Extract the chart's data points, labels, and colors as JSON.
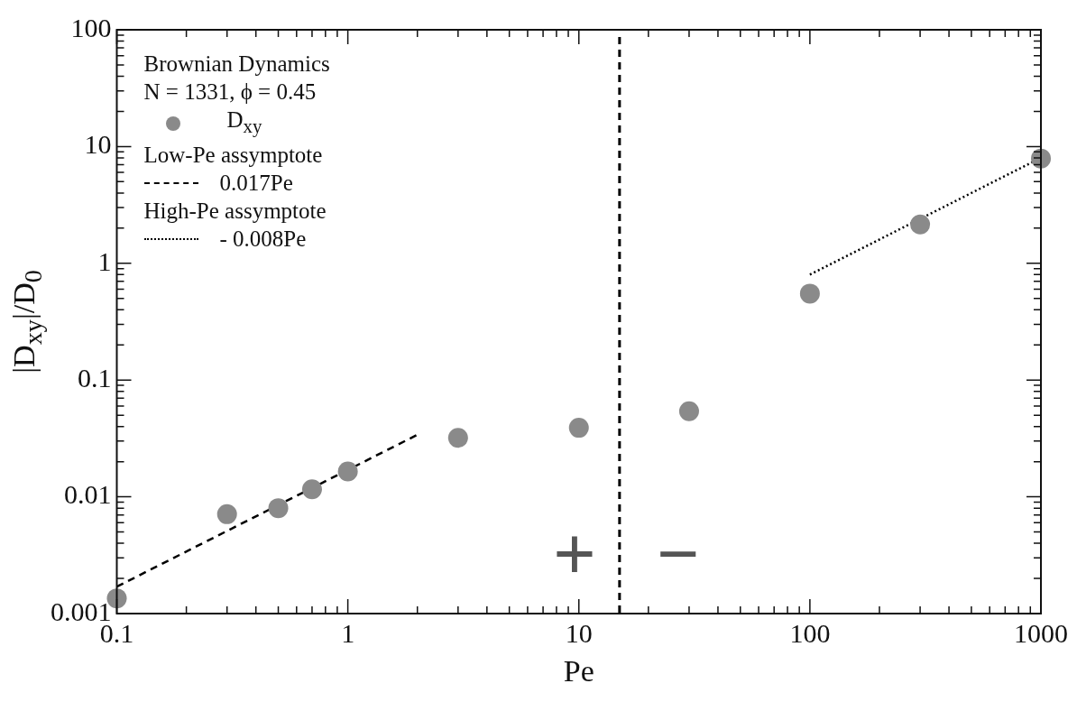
{
  "chart_data": {
    "type": "scatter",
    "xlabel": "Pe",
    "ylabel": "|D$_{xy}$|/D$_{0}$",
    "legend_title": "Brownian Dynamics",
    "legend": "top left",
    "log": "xy",
    "grid": false,
    "xlim": [
      0.1,
      1000
    ],
    "ylim": [
      0.001,
      100
    ],
    "xticks": [
      0.1,
      {
        "value": 0.2,
        "label": null
      },
      {
        "value": 0.3,
        "label": null
      },
      {
        "value": 0.4,
        "label": null
      },
      {
        "value": 0.5,
        "label": null
      },
      {
        "value": 0.6,
        "label": null
      },
      {
        "value": 0.7,
        "label": null
      },
      {
        "value": 0.8,
        "label": null
      },
      {
        "value": 0.9,
        "label": null
      },
      1,
      {
        "value": 2,
        "label": null
      },
      {
        "value": 3,
        "label": null
      },
      {
        "value": 4,
        "label": null
      },
      {
        "value": 5,
        "label": null
      },
      {
        "value": 6,
        "label": null
      },
      {
        "value": 7,
        "label": null
      },
      {
        "value": 8,
        "label": null
      },
      {
        "value": 9,
        "label": null
      },
      10,
      {
        "value": 20,
        "label": null
      },
      {
        "value": 30,
        "label": null
      },
      {
        "value": 40,
        "label": null
      },
      {
        "value": 50,
        "label": null
      },
      {
        "value": 60,
        "label": null
      },
      {
        "value": 70,
        "label": null
      },
      {
        "value": 80,
        "label": null
      },
      {
        "value": 90,
        "label": null
      },
      100,
      {
        "value": 200,
        "label": null
      },
      {
        "value": 300,
        "label": null
      },
      {
        "value": 400,
        "label": null
      },
      {
        "value": 500,
        "label": null
      },
      {
        "value": 600,
        "label": null
      },
      {
        "value": 700,
        "label": null
      },
      {
        "value": 800,
        "label": null
      },
      {
        "value": 900,
        "label": null
      },
      1000
    ],
    "yticks": [
      0.001,
      {
        "value": 0.002,
        "label": null
      },
      {
        "value": 0.003,
        "label": null
      },
      {
        "value": 0.004,
        "label": null
      },
      {
        "value": 0.005,
        "label": null
      },
      {
        "value": 0.006,
        "label": null
      },
      {
        "value": 0.007,
        "label": null
      },
      {
        "value": 0.008,
        "label": null
      },
      {
        "value": 0.009,
        "label": null
      },
      0.01,
      {
        "value": 0.02,
        "label": null
      },
      {
        "value": 0.03,
        "label": null
      },
      {
        "value": 0.04,
        "label": null
      },
      {
        "value": 0.05,
        "label": null
      },
      {
        "value": 0.06,
        "label": null
      },
      {
        "value": 0.07,
        "label": null
      },
      {
        "value": 0.08,
        "label": null
      },
      {
        "value": 0.09,
        "label": null
      },
      0.1,
      {
        "value": 0.2,
        "label": null
      },
      {
        "value": 0.3,
        "label": null
      },
      {
        "value": 0.4,
        "label": null
      },
      {
        "value": 0.5,
        "label": null
      },
      {
        "value": 0.6,
        "label": null
      },
      {
        "value": 0.7,
        "label": null
      },
      {
        "value": 0.8,
        "label": null
      },
      {
        "value": 0.9,
        "label": null
      },
      1,
      {
        "value": 2,
        "label": null
      },
      {
        "value": 3,
        "label": null
      },
      {
        "value": 4,
        "label": null
      },
      {
        "value": 5,
        "label": null
      },
      {
        "value": 6,
        "label": null
      },
      {
        "value": 7,
        "label": null
      },
      {
        "value": 8,
        "label": null
      },
      {
        "value": 9,
        "label": null
      },
      10,
      {
        "value": 20,
        "label": null
      },
      {
        "value": 30,
        "label": null
      },
      {
        "value": 40,
        "label": null
      },
      {
        "value": 50,
        "label": null
      },
      {
        "value": 60,
        "label": null
      },
      {
        "value": 70,
        "label": null
      },
      {
        "value": 80,
        "label": null
      },
      {
        "value": 90,
        "label": null
      },
      100
    ],
    "series": [
      {
        "name": "D$_{xy}$",
        "marker": "circle",
        "color": "#8a8a8a",
        "x": [
          0.1,
          0.3,
          0.5,
          0.7,
          1,
          3,
          10,
          30,
          100,
          300,
          1000
        ],
        "values": [
          0.00135,
          0.0071,
          0.008,
          0.0116,
          0.0165,
          0.032,
          0.039,
          0.054,
          0.55,
          2.15,
          7.9
        ]
      },
      {
        "name": "0.017Pe",
        "type": "line",
        "marker": "none",
        "line_style": "dashed",
        "color": "#000000",
        "x": [
          0.1,
          2
        ],
        "values": [
          0.0017,
          0.034
        ]
      },
      {
        "name": "- 0.008Pe",
        "type": "line",
        "marker": "none",
        "line_style": "dotted",
        "color": "#000000",
        "x": [
          100,
          1000
        ],
        "values": [
          0.8,
          8
        ]
      }
    ],
    "ref_lines": [
      {
        "axis": "x",
        "value": 15,
        "line_style": "dashed",
        "color": "#000000"
      }
    ],
    "annotations": [
      "N = 1331, ϕ = 0.45",
      "Low-Pe assymptote",
      "High-Pe assymptote",
      "+",
      "−"
    ]
  }
}
